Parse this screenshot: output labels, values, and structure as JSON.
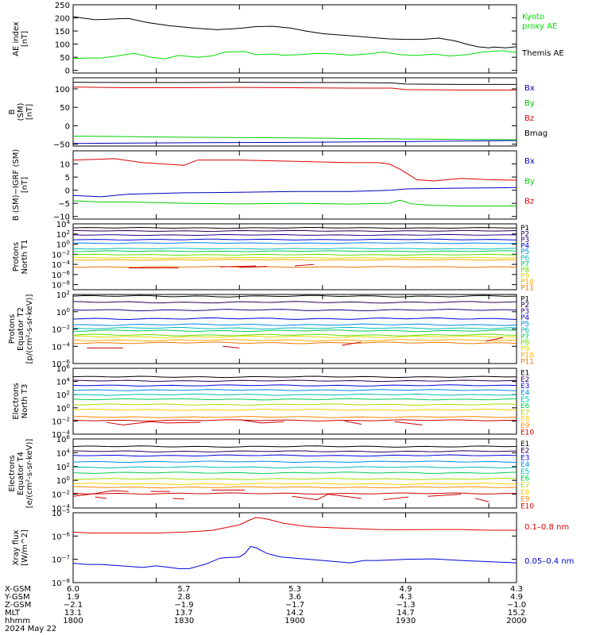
{
  "chart_data": [
    {
      "type": "line",
      "ylabel": [
        "AE index",
        "[nT]"
      ],
      "ylim": [
        -10,
        250
      ],
      "yticks": [
        0,
        50,
        100,
        150,
        200,
        250
      ],
      "series": [
        {
          "name": "Themis AE",
          "color": "#000000",
          "x": [
            0,
            3,
            8,
            15,
            20,
            27,
            35,
            45,
            52,
            60,
            66,
            72,
            78,
            84,
            90,
            96,
            100,
            108,
            114,
            120,
            126,
            132,
            138,
            142,
            146,
            150,
            152,
            156,
            160
          ],
          "y": [
            205,
            200,
            193,
            196,
            198,
            182,
            170,
            160,
            155,
            160,
            167,
            168,
            162,
            150,
            140,
            135,
            132,
            125,
            120,
            118,
            118,
            123,
            112,
            100,
            90,
            86,
            89,
            86,
            90
          ]
        },
        {
          "name": "Kyoto proxy AE",
          "color": "#00dd00",
          "x": [
            0,
            5,
            10,
            16,
            22,
            28,
            33,
            38,
            45,
            50,
            55,
            62,
            66,
            72,
            76,
            82,
            88,
            94,
            100,
            106,
            112,
            118,
            124,
            130,
            136,
            142,
            148,
            155,
            160
          ],
          "y": [
            45,
            47,
            47,
            55,
            65,
            50,
            44,
            57,
            50,
            55,
            70,
            72,
            60,
            62,
            58,
            60,
            65,
            63,
            58,
            62,
            70,
            60,
            57,
            62,
            55,
            60,
            70,
            75,
            68
          ]
        }
      ]
    },
    {
      "type": "line",
      "ylabel": [
        "B",
        "(SM)",
        "[nT]"
      ],
      "ylim": [
        -55,
        130
      ],
      "yticks": [
        -50,
        0,
        50,
        100
      ],
      "series": [
        {
          "name": "Bx",
          "color": "#0000bb",
          "x": [
            0,
            40,
            80,
            120,
            160
          ],
          "y": [
            -48,
            -46,
            -45,
            -43,
            -40
          ]
        },
        {
          "name": "By",
          "color": "#00cc00",
          "x": [
            0,
            40,
            80,
            120,
            160
          ],
          "y": [
            -28,
            -31,
            -33,
            -36,
            -38
          ]
        },
        {
          "name": "Bz",
          "color": "#dd0000",
          "x": [
            0,
            20,
            40,
            60,
            80,
            100,
            115,
            120,
            140,
            160
          ],
          "y": [
            105,
            103,
            103,
            104,
            103,
            102,
            102,
            98,
            97,
            97
          ]
        },
        {
          "name": "Bmag",
          "color": "#000000",
          "x": [
            0,
            20,
            40,
            60,
            80,
            100,
            115,
            120,
            140,
            160
          ],
          "y": [
            118,
            117,
            117,
            118,
            117,
            117,
            116,
            113,
            112,
            112
          ]
        }
      ]
    },
    {
      "type": "line",
      "ylabel": [
        "B (SM)−IGRF (SM)",
        "[nT]"
      ],
      "ylim": [
        -11,
        15
      ],
      "yticks": [
        -10,
        -5,
        0,
        5,
        10
      ],
      "series": [
        {
          "name": "Bx",
          "color": "#0000bb",
          "x": [
            0,
            10,
            20,
            40,
            60,
            80,
            100,
            115,
            120,
            140,
            160
          ],
          "y": [
            -2,
            -2.5,
            -1.5,
            -1,
            -0.8,
            -0.5,
            -0.5,
            0,
            0.5,
            0.8,
            1
          ]
        },
        {
          "name": "By",
          "color": "#00cc00",
          "x": [
            0,
            10,
            20,
            40,
            60,
            80,
            100,
            114,
            118,
            122,
            130,
            140,
            160
          ],
          "y": [
            -4,
            -4.5,
            -4.5,
            -5,
            -5.2,
            -5,
            -5.3,
            -5,
            -3.8,
            -5.2,
            -5.8,
            -6,
            -6
          ]
        },
        {
          "name": "Bz",
          "color": "#dd0000",
          "x": [
            0,
            15,
            25,
            40,
            45,
            60,
            80,
            100,
            110,
            114,
            118,
            124,
            130,
            140,
            150,
            160
          ],
          "y": [
            11.5,
            12,
            10.5,
            9.5,
            11.5,
            11.5,
            11,
            10.5,
            10.5,
            10,
            8,
            4,
            3.5,
            4.5,
            4,
            3.8
          ]
        }
      ]
    },
    {
      "type": "line",
      "ylabel": [
        "Protons",
        "North T1"
      ],
      "ylog": true,
      "ylim": [
        1e-09,
        10000.0
      ],
      "yticks": [
        "10^4",
        "10^2",
        "10^0",
        "10^-2",
        "10^-4",
        "10^-6",
        "10^-8"
      ],
      "channels": [
        "P1",
        "P2",
        "P3",
        "P4",
        "P5",
        "P6",
        "P7",
        "P8",
        "P9",
        "P10",
        "P11"
      ],
      "channel_colors": [
        "#000000",
        "#2a0055",
        "#20008a",
        "#0000dd",
        "#0088ee",
        "#00bbbb",
        "#00cc55",
        "#66dd00",
        "#dddd00",
        "#ffaa00",
        "#ee7700"
      ],
      "channel_levels_log10": [
        3.2,
        2.6,
        1.8,
        0.9,
        0.2,
        -0.9,
        -1.4,
        -2.1,
        -2.7,
        -3.1,
        -4.5
      ],
      "extra": {
        "name": "P10/P11 sparse",
        "color": "#cc0000",
        "segments": [
          [
            [
              20,
              -4.7
            ],
            [
              38,
              -4.7
            ]
          ],
          [
            [
              53,
              -4.5
            ],
            [
              66,
              -4.3
            ]
          ],
          [
            [
              60,
              -4.6
            ],
            [
              70,
              -4.4
            ]
          ],
          [
            [
              80,
              -4.3
            ],
            [
              87,
              -4.0
            ]
          ]
        ]
      }
    },
    {
      "type": "line",
      "ylabel": [
        "Protons",
        "Equator T2",
        "[p/(cm²-s-sr-keV)]"
      ],
      "ylog": true,
      "ylim": [
        1e-06,
        100.0
      ],
      "yticks": [
        "10^2",
        "10^0",
        "10^-2",
        "10^-4",
        "10^-6"
      ],
      "channels": [
        "P1",
        "P2",
        "P3",
        "P4",
        "P5",
        "P6",
        "P7",
        "P8",
        "P9",
        "P10",
        "P11"
      ],
      "channel_colors": [
        "#000000",
        "#2a0055",
        "#20008a",
        "#0000dd",
        "#0088ee",
        "#00bbbb",
        "#00cc55",
        "#66dd00",
        "#dddd00",
        "#ffaa00",
        "#ee7700"
      ],
      "channel_levels_log10": [
        1.8,
        1.1,
        0.2,
        -0.8,
        -1.5,
        -1.9,
        -2.2,
        -2.7,
        -2.9,
        -3.3,
        -3.6
      ],
      "extra": {
        "name": "P10/P11 sparse",
        "color": "#cc0000",
        "segments": [
          [
            [
              5,
              -4.2
            ],
            [
              18,
              -4.2
            ]
          ],
          [
            [
              54,
              -4.0
            ],
            [
              60,
              -4.2
            ]
          ],
          [
            [
              97,
              -3.9
            ],
            [
              104,
              -3.5
            ]
          ],
          [
            [
              149,
              -3.4
            ],
            [
              155,
              -3.0
            ]
          ]
        ]
      }
    },
    {
      "type": "line",
      "ylabel": [
        "Electrons",
        "North T3"
      ],
      "ylog": true,
      "ylim": [
        0.0001,
        1000000.0
      ],
      "yticks": [
        "10^6",
        "10^4",
        "10^2",
        "10^0",
        "10^-2",
        "10^-4"
      ],
      "channels": [
        "E1",
        "E2",
        "E3",
        "E4",
        "E5",
        "E6",
        "E7",
        "E8",
        "E9",
        "E10"
      ],
      "channel_colors": [
        "#000000",
        "#2a0055",
        "#0000dd",
        "#0088ee",
        "#00bbbb",
        "#00cc55",
        "#aadd00",
        "#ffcc00",
        "#ff8800",
        "#cc0000"
      ],
      "channel_levels_log10": [
        4.7,
        4.1,
        3.4,
        2.7,
        2.0,
        1.3,
        0.5,
        -0.3,
        -1.4,
        -1.9
      ],
      "extra": {
        "name": "E10 sparse",
        "color": "#cc0000",
        "segments": [
          [
            [
              12,
              -2.2
            ],
            [
              18,
              -2.6
            ],
            [
              28,
              -2.1
            ],
            [
              34,
              -2.3
            ],
            [
              46,
              -2.2
            ]
          ],
          [
            [
              60,
              -1.8
            ],
            [
              68,
              -2.3
            ],
            [
              76,
              -2.1
            ]
          ],
          [
            [
              98,
              -2.0
            ],
            [
              104,
              -2.5
            ]
          ],
          [
            [
              116,
              -2.1
            ],
            [
              126,
              -2.6
            ]
          ]
        ]
      }
    },
    {
      "type": "line",
      "ylabel": [
        "Electrons",
        "Equator T4",
        "[e/(cm²-s-sr-keV)]"
      ],
      "ylog": true,
      "ylim": [
        0.0001,
        1000000.0
      ],
      "yticks": [
        "10^6",
        "10^4",
        "10^2",
        "10^0",
        "10^-2",
        "10^-4"
      ],
      "channels": [
        "E1",
        "E2",
        "E3",
        "E4",
        "E5",
        "E6",
        "E7",
        "E8",
        "E9",
        "E10"
      ],
      "channel_colors": [
        "#000000",
        "#2a0055",
        "#0000dd",
        "#0088ee",
        "#00bbbb",
        "#00cc55",
        "#aadd00",
        "#ffcc00",
        "#ff8800",
        "#cc0000"
      ],
      "channel_levels_log10": [
        4.9,
        4.2,
        3.6,
        2.7,
        1.9,
        1.1,
        0.2,
        -0.5,
        -1.0,
        -1.9
      ],
      "extra": {
        "name": "E10 sparse",
        "color": "#cc0000",
        "segments": [
          [
            [
              0,
              -2.3
            ],
            [
              8,
              -1.9
            ],
            [
              14,
              -1.5
            ],
            [
              20,
              -1.6
            ]
          ],
          [
            [
              8,
              -2.4
            ],
            [
              12,
              -2.6
            ]
          ],
          [
            [
              28,
              -1.6
            ],
            [
              35,
              -1.6
            ]
          ],
          [
            [
              36,
              -2.6
            ],
            [
              40,
              -2.7
            ]
          ],
          [
            [
              50,
              -1.4
            ],
            [
              62,
              -1.4
            ]
          ],
          [
            [
              79,
              -2.3
            ],
            [
              88,
              -2.8
            ],
            [
              92,
              -2.0
            ],
            [
              104,
              -2.6
            ]
          ],
          [
            [
              112,
              -2.8
            ],
            [
              121,
              -2.4
            ]
          ],
          [
            [
              128,
              -2.3
            ],
            [
              140,
              -2.0
            ]
          ],
          [
            [
              145,
              -2.6
            ],
            [
              150,
              -3.1
            ]
          ]
        ]
      }
    },
    {
      "type": "line",
      "ylabel": [
        "Xray flux",
        "[W/m^2]"
      ],
      "ylog": true,
      "ylim": [
        1e-08,
        1e-05
      ],
      "yticks": [
        "10^-5",
        "10^-6",
        "10^-7",
        "10^-8"
      ],
      "series": [
        {
          "name": "0.1–0.8 nm",
          "color": "#dd0000",
          "x": [
            0,
            6,
            20,
            30,
            40,
            50,
            60,
            63,
            66,
            70,
            76,
            85,
            95,
            110,
            120,
            130,
            140,
            150,
            160
          ],
          "y": [
            -5.83,
            -5.87,
            -5.87,
            -5.87,
            -5.83,
            -5.76,
            -5.52,
            -5.35,
            -5.2,
            -5.27,
            -5.45,
            -5.6,
            -5.65,
            -5.72,
            -5.73,
            -5.72,
            -5.72,
            -5.75,
            -5.75
          ]
        },
        {
          "name": "0.05–0.4 nm",
          "color": "#0000dd",
          "x": [
            0,
            5,
            10,
            20,
            25,
            30,
            35,
            38,
            42,
            48,
            53,
            56,
            60,
            62,
            64,
            66,
            70,
            75,
            85,
            95,
            100,
            105,
            110,
            120,
            130,
            140,
            150,
            160
          ],
          "y": [
            -7.17,
            -7.22,
            -7.22,
            -7.3,
            -7.35,
            -7.28,
            -7.35,
            -7.4,
            -7.4,
            -7.2,
            -6.95,
            -6.92,
            -6.9,
            -6.75,
            -6.45,
            -6.5,
            -6.75,
            -6.9,
            -7.0,
            -7.1,
            -7.15,
            -7.05,
            -7.05,
            -7.0,
            -6.98,
            -7.05,
            -7.1,
            -7.15
          ]
        }
      ]
    }
  ],
  "legends": [
    [
      "Kyoto",
      "proxy AE",
      "Themis AE"
    ],
    [
      "Bx",
      "By",
      "Bz",
      "Bmag"
    ],
    [
      "Bx",
      "By",
      "Bz"
    ],
    [],
    [],
    [],
    [],
    [
      "0.1–0.8 nm",
      "0.05–0.4 nm"
    ]
  ],
  "x_axis": {
    "time_label": "hhmm",
    "date": "2024 May 22",
    "ticks": [
      "1800",
      "1830",
      "1900",
      "1930",
      "2000"
    ],
    "x_minutes": [
      0,
      30,
      60,
      90,
      120,
      150,
      160
    ],
    "rows": [
      {
        "label": "X-GSM",
        "values": [
          "6.0",
          "5.7",
          "5.3",
          "4.9",
          "4.3"
        ]
      },
      {
        "label": "Y-GSM",
        "values": [
          "1.9",
          "2.8",
          "3.6",
          "4.3",
          "4.9"
        ]
      },
      {
        "label": "Z-GSM",
        "values": [
          "−2.1",
          "−1.9",
          "−1.7",
          "−1.3",
          "−1.0"
        ]
      },
      {
        "label": "MLT",
        "values": [
          "13.1",
          "13.7",
          "14.2",
          "14.7",
          "15.2"
        ]
      }
    ],
    "range_minutes": [
      0,
      160
    ]
  }
}
